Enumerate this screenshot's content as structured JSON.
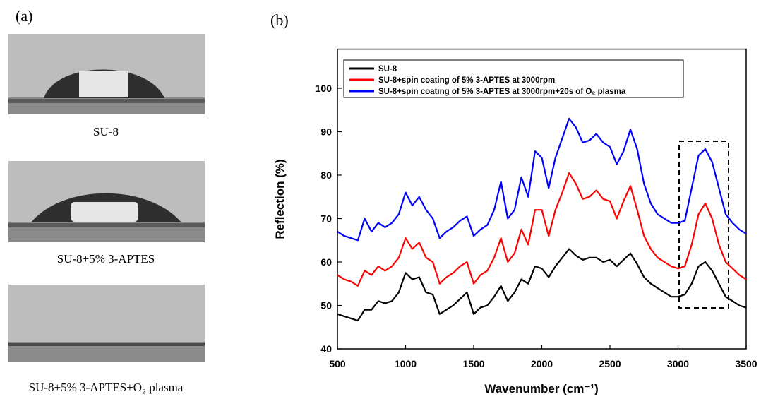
{
  "panel_a": {
    "label": "(a)",
    "captions": [
      "SU-8",
      "SU-8+5% 3-APTES",
      "SU-8+5% 3-APTES+O₂ plasma"
    ]
  },
  "chart_data": {
    "type": "line",
    "panel_label": "(b)",
    "x_label": "Wavenumber (cm⁻¹)",
    "y_label": "Reflection (%)",
    "x": [
      500,
      550,
      600,
      650,
      700,
      750,
      800,
      850,
      900,
      950,
      1000,
      1050,
      1100,
      1150,
      1200,
      1250,
      1300,
      1350,
      1400,
      1450,
      1500,
      1550,
      1600,
      1650,
      1700,
      1750,
      1800,
      1850,
      1900,
      1950,
      2000,
      2050,
      2100,
      2150,
      2200,
      2250,
      2300,
      2350,
      2400,
      2450,
      2500,
      2550,
      2600,
      2650,
      2700,
      2750,
      2800,
      2850,
      2900,
      2950,
      3000,
      3050,
      3100,
      3150,
      3200,
      3250,
      3300,
      3350,
      3400,
      3450,
      3500
    ],
    "series": [
      {
        "name": "SU-8",
        "color": "#000000",
        "values": [
          48,
          47.5,
          47,
          46.5,
          49,
          49,
          51,
          50.5,
          51,
          53,
          57.5,
          56,
          56.5,
          53,
          52.5,
          48,
          49,
          50,
          51.5,
          53,
          48,
          49.5,
          50,
          52,
          54.5,
          51,
          53,
          56,
          55,
          59,
          58.5,
          56.5,
          59,
          61,
          63,
          61.5,
          60.5,
          61,
          61,
          60,
          60.5,
          59,
          60.5,
          62,
          59.5,
          56.5,
          55,
          54,
          53,
          52,
          52,
          52.5,
          55,
          59,
          60,
          58,
          55,
          52,
          51,
          50,
          49.5
        ]
      },
      {
        "name": "SU-8+spin coating of 5% 3-APTES at 3000rpm",
        "color": "#ff0000",
        "values": [
          57,
          56,
          55.5,
          54.5,
          58,
          57,
          59,
          58,
          59,
          61,
          65.5,
          63,
          64.5,
          61,
          60,
          55,
          56.5,
          57.5,
          59,
          60,
          55,
          57,
          58,
          61,
          65.5,
          60,
          62,
          67.5,
          64,
          72,
          72,
          66,
          72,
          76,
          80.5,
          78,
          74.5,
          75,
          76.5,
          74.5,
          74,
          70,
          74,
          77.5,
          72,
          66,
          63,
          61,
          60,
          59,
          58.5,
          59,
          64,
          71,
          73.5,
          70,
          64,
          60,
          58.5,
          57,
          56
        ]
      },
      {
        "name": "SU-8+spin coating of 5% 3-APTES at 3000rpm+20s of O₂ plasma",
        "color": "#0000ff",
        "values": [
          67,
          66,
          65.5,
          65,
          70,
          67,
          69,
          68,
          69,
          71,
          76,
          73,
          75,
          72,
          70,
          65.5,
          67,
          68,
          69.5,
          70.5,
          66,
          67.5,
          68.5,
          72,
          78.5,
          70,
          72,
          79.5,
          75,
          85.5,
          84,
          77,
          84,
          88.5,
          93,
          91,
          87.5,
          88,
          89.5,
          87.5,
          86.5,
          82.5,
          85.5,
          90.5,
          86,
          78,
          73.5,
          71,
          70,
          69,
          69,
          69.5,
          77,
          84.5,
          86,
          83,
          77,
          71,
          69,
          67.5,
          66.5
        ]
      }
    ],
    "xlim": [
      500,
      3500
    ],
    "xticks": [
      500,
      1000,
      1500,
      2000,
      2500,
      3000,
      3500
    ],
    "ylim": [
      40,
      109
    ],
    "yticks": [
      40,
      50,
      60,
      70,
      80,
      90,
      100
    ],
    "legend": "top-left"
  }
}
